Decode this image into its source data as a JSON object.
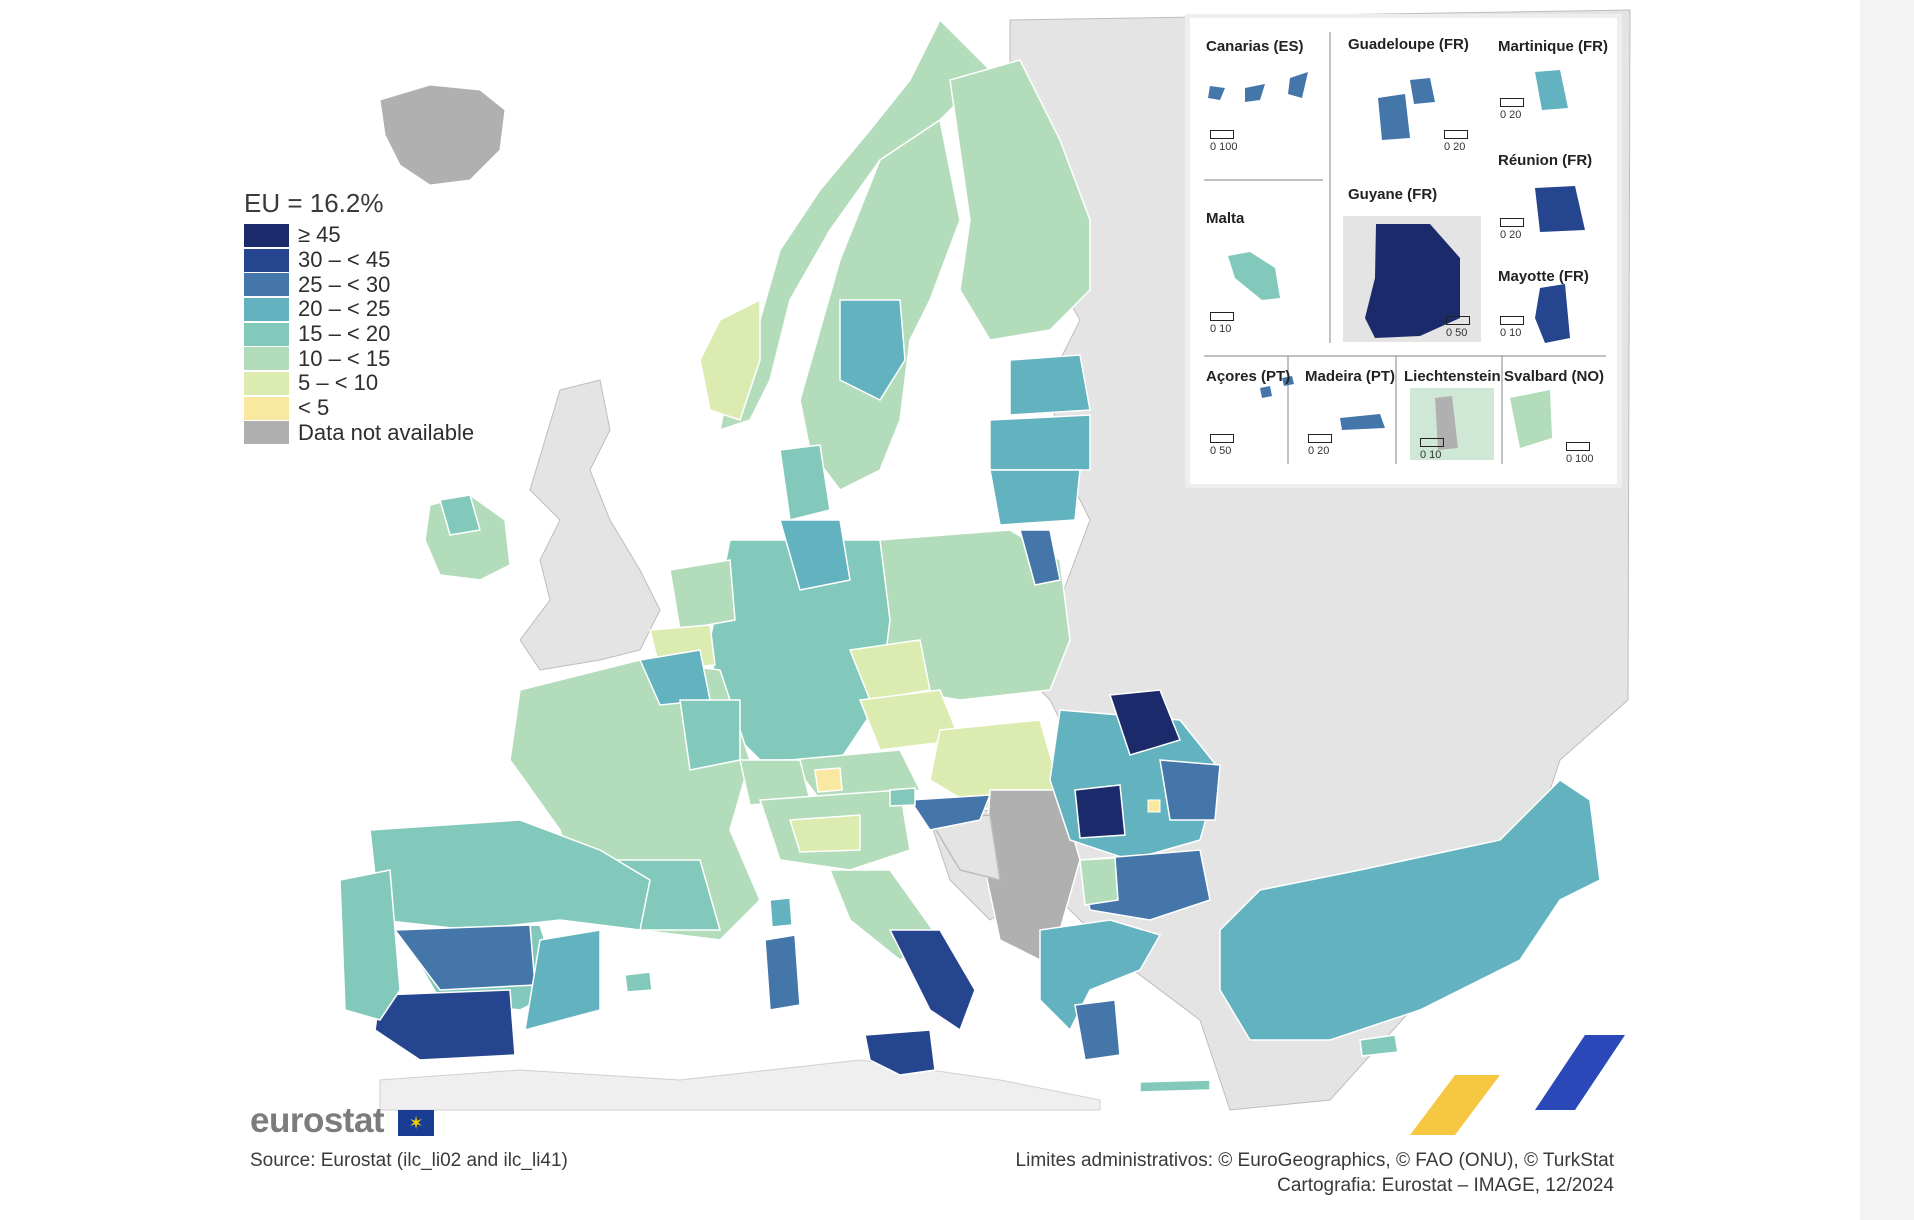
{
  "legend": {
    "title": "EU = 16.2%",
    "items": [
      {
        "label": "≥ 45",
        "color": "#1b2a6a"
      },
      {
        "label": "30 – < 45",
        "color": "#26458f"
      },
      {
        "label": "25 – < 30",
        "color": "#4476aa"
      },
      {
        "label": "20 – < 25",
        "color": "#62b2bf"
      },
      {
        "label": "15 – < 20",
        "color": "#82c9bc"
      },
      {
        "label": "10 – < 15",
        "color": "#b2dcba"
      },
      {
        "label": "5 – < 10",
        "color": "#dcecb1"
      },
      {
        "label": "< 5",
        "color": "#f9e9a0"
      },
      {
        "label": "Data not available",
        "color": "#b0b0b0"
      }
    ]
  },
  "insets": [
    {
      "title": "Canarias (ES)",
      "scale": "0   100"
    },
    {
      "title": "Guadeloupe (FR)",
      "scale": "0  20"
    },
    {
      "title": "Martinique (FR)",
      "scale": "0  20"
    },
    {
      "title": "Réunion (FR)",
      "scale": "0  20"
    },
    {
      "title": "Malta",
      "scale": "0  10"
    },
    {
      "title": "Guyane (FR)",
      "scale": "0 50"
    },
    {
      "title": "Mayotte (FR)",
      "scale": "0  10"
    },
    {
      "title": "Açores (PT)",
      "scale": "0  50"
    },
    {
      "title": "Madeira (PT)",
      "scale": "0  20"
    },
    {
      "title": "Liechtenstein",
      "scale": "0  10"
    },
    {
      "title": "Svalbard (NO)",
      "scale": "0 100"
    }
  ],
  "footer": {
    "logo": "eurostat",
    "source": "Source: Eurostat (ilc_li02 and ilc_li41)",
    "credit_line1": "Limites administrativos: © EuroGeographics, © FAO (ONU), © TurkStat",
    "credit_line2": "Cartografia: Eurostat – IMAGE, 12/2024"
  }
}
